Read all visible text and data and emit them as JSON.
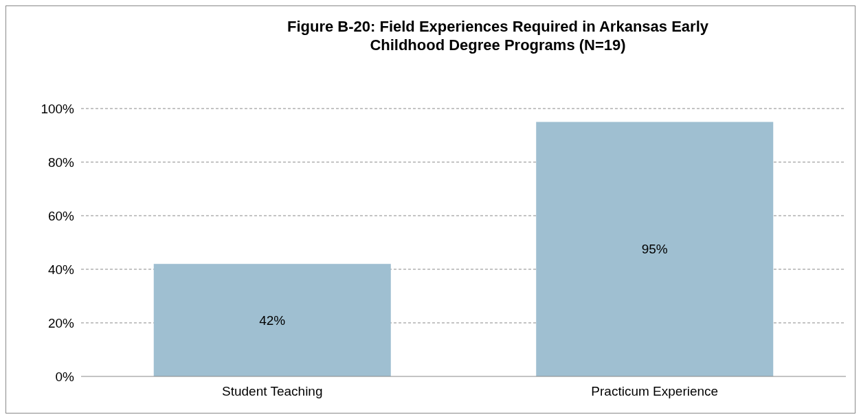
{
  "chart_data": {
    "type": "bar",
    "title": "Figure B-20: Field Experiences Required in Arkansas Early Childhood Degree Programs (N=19)",
    "categories": [
      "Student Teaching",
      "Practicum Experience"
    ],
    "values": [
      42,
      95
    ],
    "value_labels": [
      "42%",
      "95%"
    ],
    "color": "#9fbfd1",
    "ylim": [
      0,
      100
    ],
    "yticks": [
      {
        "value": 0,
        "label": "0%"
      },
      {
        "value": 20,
        "label": "20%"
      },
      {
        "value": 40,
        "label": "40%"
      },
      {
        "value": 60,
        "label": "60%"
      },
      {
        "value": 80,
        "label": "80%"
      },
      {
        "value": 100,
        "label": "100%"
      }
    ],
    "grid": "y",
    "line_style": "dashed"
  }
}
